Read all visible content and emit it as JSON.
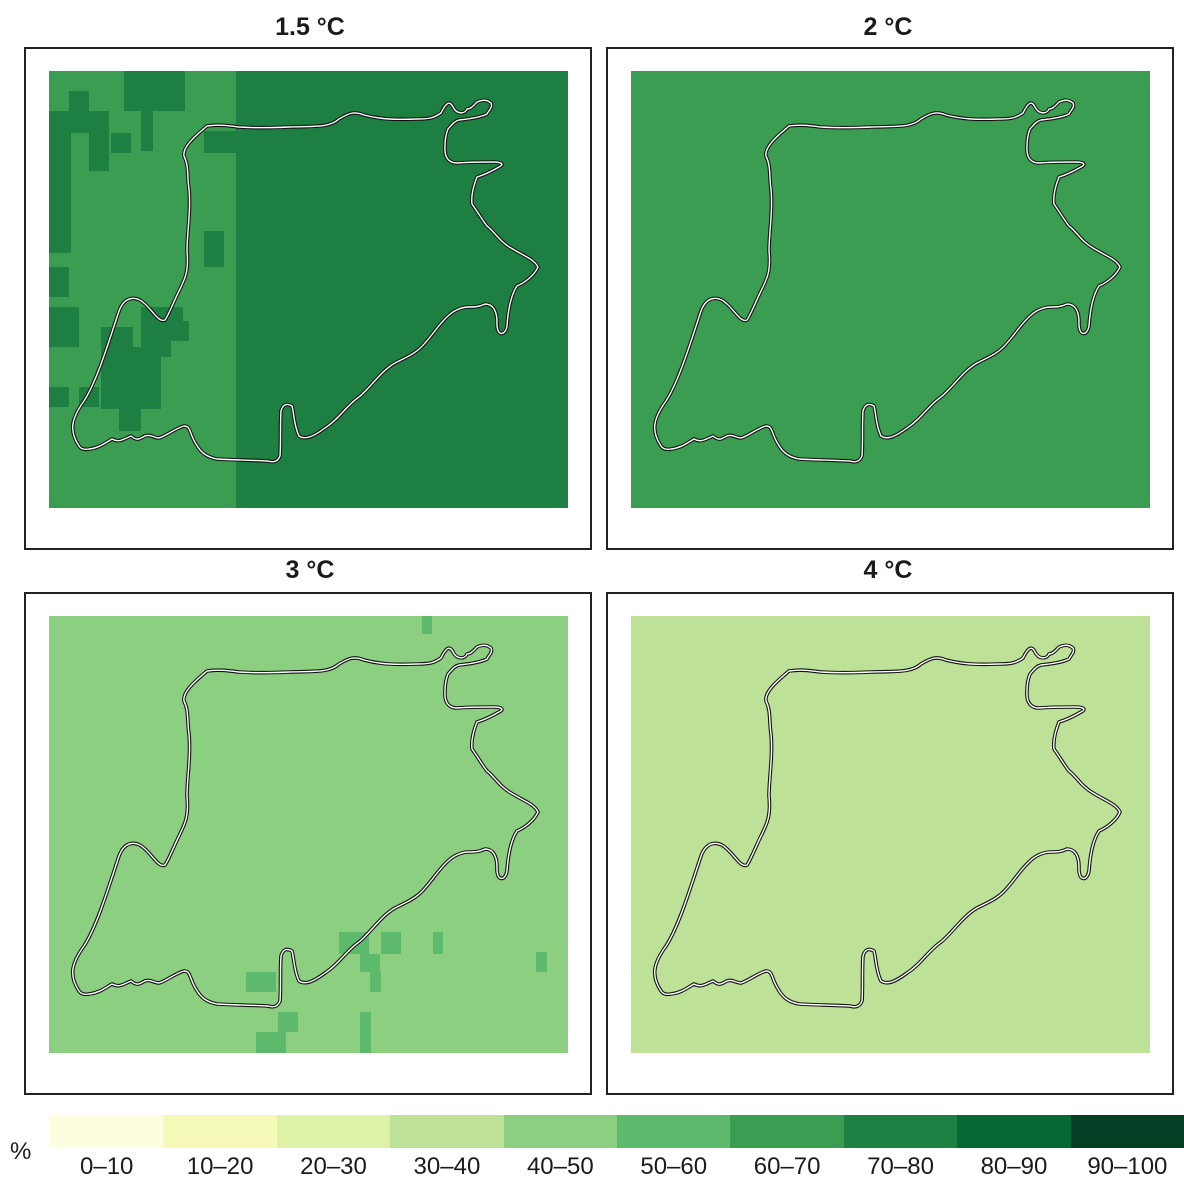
{
  "panels": [
    {
      "title": "1.5 °C",
      "base_class": "60–70",
      "base_color": "#3a9d52"
    },
    {
      "title": "2 °C",
      "base_class": "60–70",
      "base_color": "#3a9d52"
    },
    {
      "title": "3 °C",
      "base_class": "40–50",
      "base_color": "#8dcf80"
    },
    {
      "title": "4 °C",
      "base_class": "30–40",
      "base_color": "#bde297"
    }
  ],
  "legend": {
    "unit": "%",
    "classes": [
      {
        "label": "0–10",
        "color": "#fdfde0"
      },
      {
        "label": "10–20",
        "color": "#f6fab8"
      },
      {
        "label": "20–30",
        "color": "#def2a8"
      },
      {
        "label": "30–40",
        "color": "#bde297"
      },
      {
        "label": "40–50",
        "color": "#8dcf80"
      },
      {
        "label": "50–60",
        "color": "#5db96b"
      },
      {
        "label": "60–70",
        "color": "#3a9d52"
      },
      {
        "label": "70–80",
        "color": "#1e7f43"
      },
      {
        "label": "80–90",
        "color": "#046834"
      },
      {
        "label": "90–100",
        "color": "#053f26"
      }
    ]
  },
  "colors": {
    "region_outline": "#111111",
    "region_outline_inner": "#ffffff",
    "frame_border": "#222222"
  }
}
